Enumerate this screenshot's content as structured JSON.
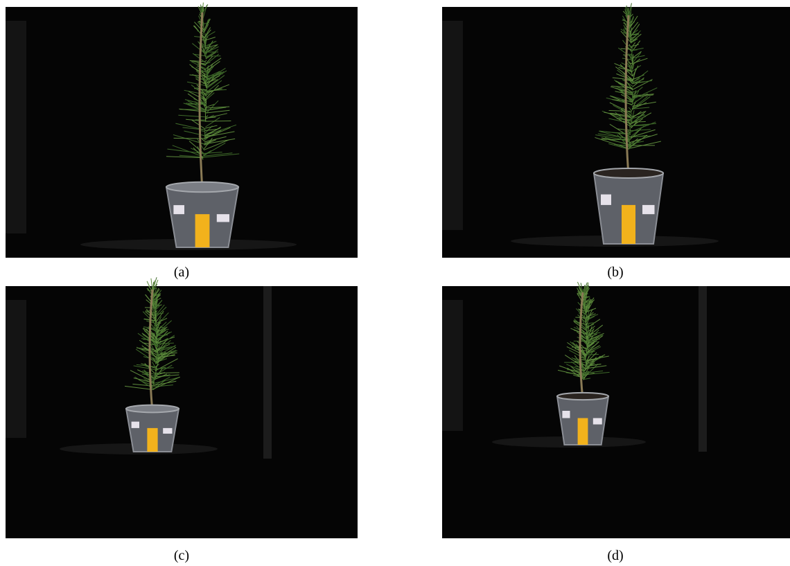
{
  "figure": {
    "captions": [
      "(a)",
      "(b)",
      "(c)",
      "(d)"
    ]
  }
}
